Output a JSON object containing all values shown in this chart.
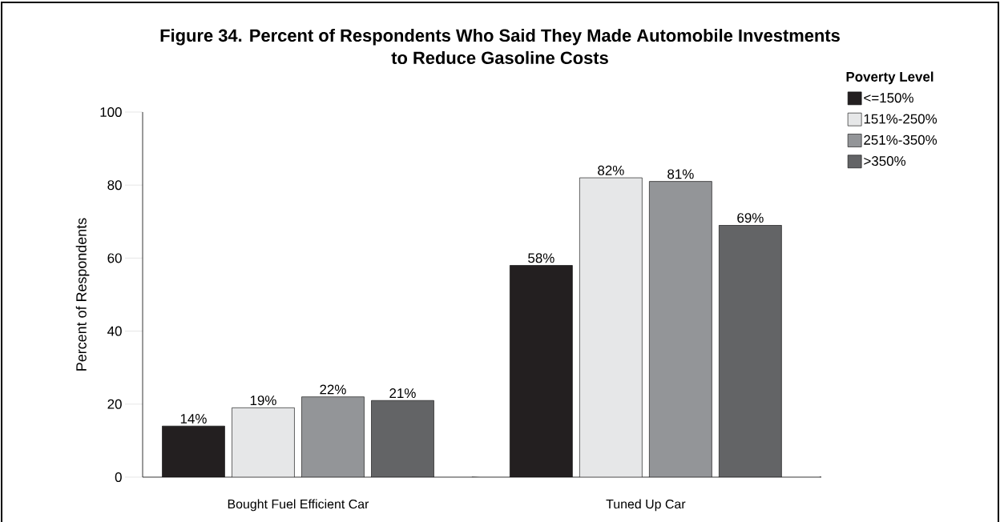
{
  "chart_data": {
    "type": "bar",
    "title": "Figure 34.  Percent of Respondents Who Said They Made Automobile Investments\nto Reduce Gasoline Costs",
    "ylabel": "Percent of Respondents",
    "legend_title": "Poverty Level",
    "categories": [
      "Bought Fuel Efficient Car",
      "Tuned Up Car"
    ],
    "series": [
      {
        "name": "<=150%",
        "color": "#231f20",
        "values": [
          14,
          58
        ],
        "value_labels": [
          "14%",
          "58%"
        ]
      },
      {
        "name": "151%-250%",
        "color": "#e6e7e8",
        "values": [
          19,
          82
        ],
        "value_labels": [
          "19%",
          "82%"
        ]
      },
      {
        "name": "251%-350%",
        "color": "#939598",
        "values": [
          22,
          81
        ],
        "value_labels": [
          "22%",
          "81%"
        ]
      },
      {
        "name": ">350%",
        "color": "#636466",
        "values": [
          21,
          69
        ],
        "value_labels": [
          "21%",
          "69%"
        ]
      }
    ],
    "ylim": [
      0,
      100
    ],
    "yticks": [
      0,
      20,
      40,
      60,
      80,
      100
    ],
    "grid": false,
    "legend": "top right"
  }
}
